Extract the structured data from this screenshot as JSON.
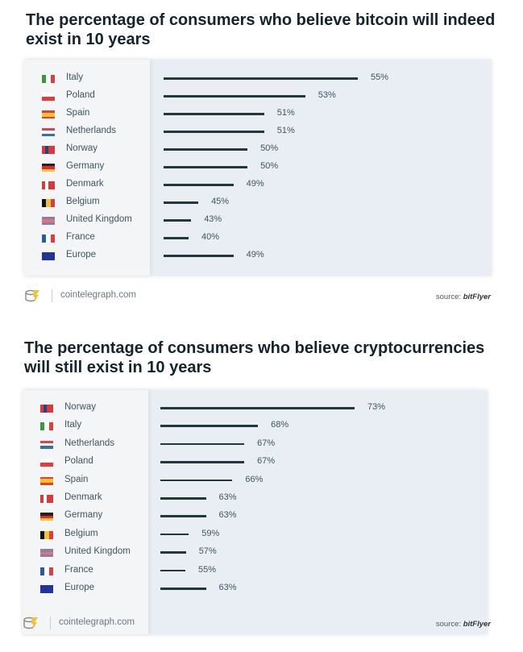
{
  "chart_data": [
    {
      "type": "bar",
      "orientation": "horizontal",
      "title": "The percentage of consumers who believe bitcoin will indeed exist in 10 years",
      "categories": [
        "Italy",
        "Poland",
        "Spain",
        "Netherlands",
        "Norway",
        "Germany",
        "Denmark",
        "Belgium",
        "United Kingdom",
        "France",
        "Europe"
      ],
      "values": [
        55,
        53,
        51,
        51,
        50,
        50,
        49,
        45,
        43,
        40,
        49
      ],
      "labels": [
        "55%",
        "53%",
        "51%",
        "51%",
        "50%",
        "50%",
        "49%",
        "45%",
        "43%",
        "40%",
        "49%"
      ],
      "flags": [
        "it",
        "pl",
        "es",
        "nl",
        "no",
        "de",
        "dk",
        "be",
        "gb",
        "fr",
        "eu"
      ],
      "footer": {
        "site": "cointelegraph.com",
        "source_prefix": "source:",
        "source_name": "bitFlyer"
      }
    },
    {
      "type": "bar",
      "orientation": "horizontal",
      "title": "The percentage of consumers who believe cryptocurrencies will still exist in 10 years",
      "categories": [
        "Norway",
        "Italy",
        "Netherlands",
        "Poland",
        "Spain",
        "Denmark",
        "Germany",
        "Belgium",
        "United Kingdom",
        "France",
        "Europe"
      ],
      "values": [
        73,
        68,
        67,
        67,
        66,
        63,
        63,
        59,
        57,
        55,
        63
      ],
      "labels": [
        "73%",
        "68%",
        "67%",
        "67%",
        "66%",
        "63%",
        "63%",
        "59%",
        "57%",
        "55%",
        "63%"
      ],
      "flags": [
        "no",
        "it",
        "nl",
        "pl",
        "es",
        "dk",
        "de",
        "be",
        "gb",
        "fr",
        "eu"
      ],
      "footer": {
        "site": "cointelegraph.com",
        "source_prefix": "source:",
        "source_name": "bitFlyer"
      }
    }
  ],
  "colors": {
    "bar": "#22383f",
    "card": "#e8eef4",
    "legend": "#f3f5f7",
    "title": "#14232c"
  }
}
